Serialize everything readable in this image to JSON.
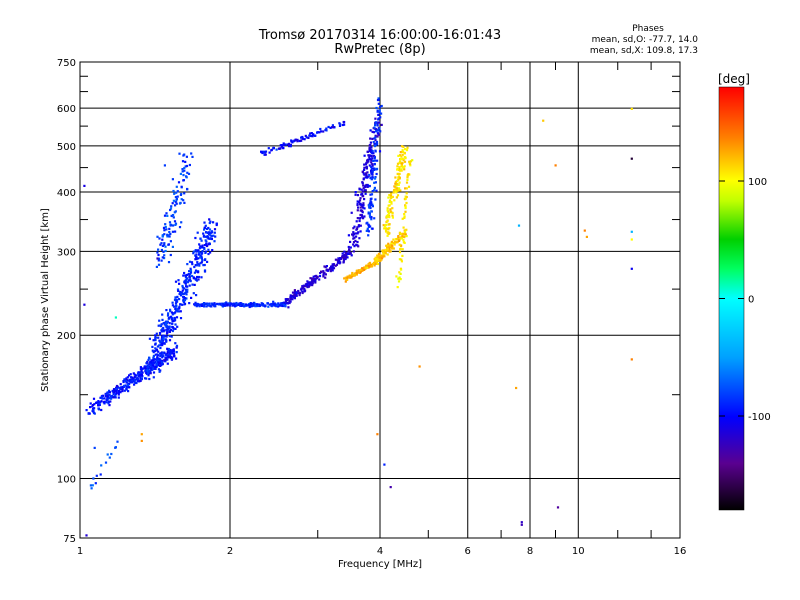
{
  "chart_data": {
    "type": "scatter",
    "title": "Tromsø 20170314 16:00:00-16:01:43",
    "subtitle": "RwPretec (8p)",
    "phase_header": "Phases",
    "phase_stats": [
      "mean, sd,O: -77.7, 14.0",
      "mean, sd,X: 109.8, 17.3"
    ],
    "xlabel": "Frequency [MHz]",
    "ylabel": "Stationary phase Virtual Height [km]",
    "xscale": "log",
    "yscale": "log",
    "xlim": [
      1,
      16
    ],
    "ylim": [
      75,
      750
    ],
    "x_ticks": [
      1,
      2,
      4,
      6,
      8,
      10,
      16
    ],
    "x_tick_labels": [
      "1",
      "2",
      "4",
      "6",
      "8",
      "10",
      "16"
    ],
    "x_minor_ticks": [
      3,
      5,
      7,
      9,
      12,
      14
    ],
    "y_ticks": [
      75,
      100,
      200,
      300,
      400,
      500,
      600,
      750
    ],
    "y_tick_labels": [
      "75",
      "100",
      "200",
      "300",
      "400",
      "500",
      "600",
      "750"
    ],
    "y_minor_ticks": [
      150,
      250,
      350,
      450,
      550,
      650,
      700
    ],
    "grid": true,
    "colorbar": {
      "label": "[deg]",
      "range": [
        -180,
        180
      ],
      "ticks": [
        100,
        0,
        -100
      ],
      "tick_labels": [
        "100",
        "0",
        "-100"
      ]
    },
    "series": [
      {
        "segments": [
          {
            "x": [
              1.05,
              1.55
            ],
            "y": [
              140,
              185
            ],
            "phase": -95,
            "count": 360,
            "spread": 0.05
          },
          {
            "x": [
              1.38,
              1.85
            ],
            "y": [
              170,
              340
            ],
            "phase": -90,
            "count": 420,
            "spread": 0.09
          },
          {
            "x": [
              1.45,
              1.65
            ],
            "y": [
              290,
              470
            ],
            "phase": -82,
            "count": 120,
            "spread": 0.09
          },
          {
            "x": [
              1.7,
              2.6
            ],
            "y": [
              232,
              232
            ],
            "phase": -88,
            "count": 220,
            "spread": 0.015
          },
          {
            "x": [
              2.6,
              3.5
            ],
            "y": [
              235,
              300
            ],
            "phase": -115,
            "count": 200,
            "spread": 0.03
          },
          {
            "x": [
              3.5,
              3.95
            ],
            "y": [
              300,
              560
            ],
            "phase": -112,
            "count": 180,
            "spread": 0.06
          },
          {
            "x": [
              2.3,
              3.4
            ],
            "y": [
              480,
              560
            ],
            "phase": -98,
            "count": 90,
            "spread": 0.02
          },
          {
            "x": [
              3.8,
              4.0
            ],
            "y": [
              330,
              640
            ],
            "phase": -85,
            "count": 120,
            "spread": 0.04
          },
          {
            "x": [
              1.05,
              1.2
            ],
            "y": [
              96,
              122
            ],
            "phase": -75,
            "count": 14,
            "spread": 0.03
          }
        ]
      },
      {
        "segments": [
          {
            "x": [
              3.4,
              3.85
            ],
            "y": [
              262,
              282
            ],
            "phase": 122,
            "count": 110,
            "spread": 0.015
          },
          {
            "x": [
              3.85,
              4.5
            ],
            "y": [
              282,
              330
            ],
            "phase": 115,
            "count": 120,
            "spread": 0.03
          },
          {
            "x": [
              4.1,
              4.5
            ],
            "y": [
              330,
              500
            ],
            "phase": 108,
            "count": 140,
            "spread": 0.05
          },
          {
            "x": [
              4.35,
              4.6
            ],
            "y": [
              250,
              480
            ],
            "phase": 105,
            "count": 60,
            "spread": 0.03
          }
        ]
      }
    ],
    "isolated_points": [
      {
        "x": 1.02,
        "y": 412,
        "phase": -110
      },
      {
        "x": 1.02,
        "y": 232,
        "phase": -112
      },
      {
        "x": 1.03,
        "y": 76,
        "phase": -115
      },
      {
        "x": 1.07,
        "y": 116,
        "phase": -80
      },
      {
        "x": 1.1,
        "y": 102,
        "phase": -90
      },
      {
        "x": 1.18,
        "y": 218,
        "phase": 10
      },
      {
        "x": 1.33,
        "y": 124,
        "phase": 125
      },
      {
        "x": 1.33,
        "y": 120,
        "phase": 130
      },
      {
        "x": 1.43,
        "y": 290,
        "phase": -120
      },
      {
        "x": 1.48,
        "y": 455,
        "phase": -82
      },
      {
        "x": 3.95,
        "y": 124,
        "phase": 135
      },
      {
        "x": 4.08,
        "y": 107,
        "phase": -90
      },
      {
        "x": 4.2,
        "y": 96,
        "phase": -130
      },
      {
        "x": 4.8,
        "y": 172,
        "phase": 130
      },
      {
        "x": 7.5,
        "y": 155,
        "phase": 125
      },
      {
        "x": 7.6,
        "y": 340,
        "phase": -40
      },
      {
        "x": 7.7,
        "y": 80,
        "phase": -125
      },
      {
        "x": 7.7,
        "y": 81,
        "phase": -120
      },
      {
        "x": 8.5,
        "y": 565,
        "phase": 115
      },
      {
        "x": 9.0,
        "y": 455,
        "phase": 135
      },
      {
        "x": 9.1,
        "y": 87,
        "phase": -135
      },
      {
        "x": 10.3,
        "y": 332,
        "phase": 135
      },
      {
        "x": 10.4,
        "y": 322,
        "phase": 125
      },
      {
        "x": 12.8,
        "y": 598,
        "phase": 108
      },
      {
        "x": 12.8,
        "y": 470,
        "phase": -165
      },
      {
        "x": 12.8,
        "y": 330,
        "phase": -40
      },
      {
        "x": 12.8,
        "y": 318,
        "phase": 100
      },
      {
        "x": 12.8,
        "y": 276,
        "phase": -105
      },
      {
        "x": 12.8,
        "y": 178,
        "phase": 135
      }
    ]
  }
}
